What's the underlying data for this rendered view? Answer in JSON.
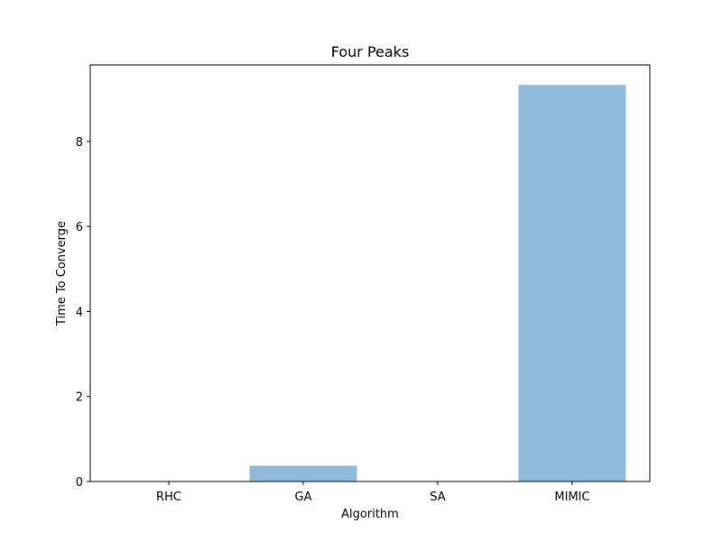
{
  "chart_data": {
    "type": "bar",
    "title": "Four Peaks",
    "xlabel": "Algorithm",
    "ylabel": "Time To Converge",
    "categories": [
      "RHC",
      "GA",
      "SA",
      "MIMIC"
    ],
    "values": [
      0.004,
      0.37,
      0.004,
      9.33
    ],
    "ylim": [
      0,
      9.8
    ],
    "yticks": [
      0,
      2,
      4,
      6,
      8
    ],
    "grid": false,
    "bar_color": "#8fbad9"
  }
}
